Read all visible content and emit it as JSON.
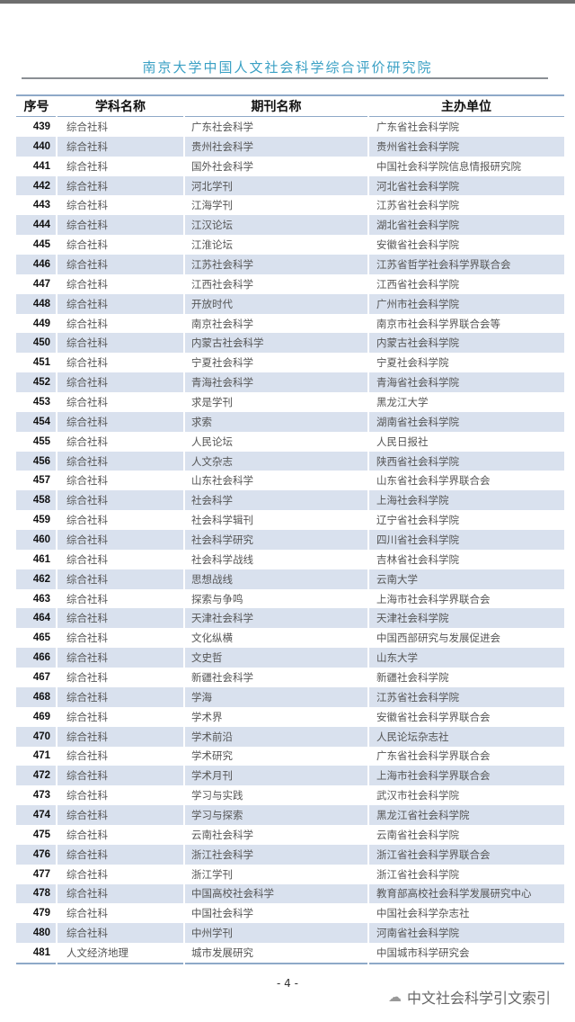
{
  "header": {
    "institution": "南京大学中国人文社会科学综合评价研究院"
  },
  "table": {
    "columns": [
      "序号",
      "学科名称",
      "期刊名称",
      "主办单位"
    ],
    "rows": [
      [
        "439",
        "综合社科",
        "广东社会科学",
        "广东省社会科学院"
      ],
      [
        "440",
        "综合社科",
        "贵州社会科学",
        "贵州省社会科学院"
      ],
      [
        "441",
        "综合社科",
        "国外社会科学",
        "中国社会科学院信息情报研究院"
      ],
      [
        "442",
        "综合社科",
        "河北学刊",
        "河北省社会科学院"
      ],
      [
        "443",
        "综合社科",
        "江海学刊",
        "江苏省社会科学院"
      ],
      [
        "444",
        "综合社科",
        "江汉论坛",
        "湖北省社会科学院"
      ],
      [
        "445",
        "综合社科",
        "江淮论坛",
        "安徽省社会科学院"
      ],
      [
        "446",
        "综合社科",
        "江苏社会科学",
        "江苏省哲学社会科学界联合会"
      ],
      [
        "447",
        "综合社科",
        "江西社会科学",
        "江西省社会科学院"
      ],
      [
        "448",
        "综合社科",
        "开放时代",
        "广州市社会科学院"
      ],
      [
        "449",
        "综合社科",
        "南京社会科学",
        "南京市社会科学界联合会等"
      ],
      [
        "450",
        "综合社科",
        "内蒙古社会科学",
        "内蒙古社会科学院"
      ],
      [
        "451",
        "综合社科",
        "宁夏社会科学",
        "宁夏社会科学院"
      ],
      [
        "452",
        "综合社科",
        "青海社会科学",
        "青海省社会科学院"
      ],
      [
        "453",
        "综合社科",
        "求是学刊",
        "黑龙江大学"
      ],
      [
        "454",
        "综合社科",
        "求索",
        "湖南省社会科学院"
      ],
      [
        "455",
        "综合社科",
        "人民论坛",
        "人民日报社"
      ],
      [
        "456",
        "综合社科",
        "人文杂志",
        "陕西省社会科学院"
      ],
      [
        "457",
        "综合社科",
        "山东社会科学",
        "山东省社会科学界联合会"
      ],
      [
        "458",
        "综合社科",
        "社会科学",
        "上海社会科学院"
      ],
      [
        "459",
        "综合社科",
        "社会科学辑刊",
        "辽宁省社会科学院"
      ],
      [
        "460",
        "综合社科",
        "社会科学研究",
        "四川省社会科学院"
      ],
      [
        "461",
        "综合社科",
        "社会科学战线",
        "吉林省社会科学院"
      ],
      [
        "462",
        "综合社科",
        "思想战线",
        "云南大学"
      ],
      [
        "463",
        "综合社科",
        "探索与争鸣",
        "上海市社会科学界联合会"
      ],
      [
        "464",
        "综合社科",
        "天津社会科学",
        "天津社会科学院"
      ],
      [
        "465",
        "综合社科",
        "文化纵横",
        "中国西部研究与发展促进会"
      ],
      [
        "466",
        "综合社科",
        "文史哲",
        "山东大学"
      ],
      [
        "467",
        "综合社科",
        "新疆社会科学",
        "新疆社会科学院"
      ],
      [
        "468",
        "综合社科",
        "学海",
        "江苏省社会科学院"
      ],
      [
        "469",
        "综合社科",
        "学术界",
        "安徽省社会科学界联合会"
      ],
      [
        "470",
        "综合社科",
        "学术前沿",
        "人民论坛杂志社"
      ],
      [
        "471",
        "综合社科",
        "学术研究",
        "广东省社会科学界联合会"
      ],
      [
        "472",
        "综合社科",
        "学术月刊",
        "上海市社会科学界联合会"
      ],
      [
        "473",
        "综合社科",
        "学习与实践",
        "武汉市社会科学院"
      ],
      [
        "474",
        "综合社科",
        "学习与探索",
        "黑龙江省社会科学院"
      ],
      [
        "475",
        "综合社科",
        "云南社会科学",
        "云南省社会科学院"
      ],
      [
        "476",
        "综合社科",
        "浙江社会科学",
        "浙江省社会科学界联合会"
      ],
      [
        "477",
        "综合社科",
        "浙江学刊",
        "浙江省社会科学院"
      ],
      [
        "478",
        "综合社科",
        "中国高校社会科学",
        "教育部高校社会科学发展研究中心"
      ],
      [
        "479",
        "综合社科",
        "中国社会科学",
        "中国社会科学杂志社"
      ],
      [
        "480",
        "综合社科",
        "中州学刊",
        "河南省社会科学院"
      ],
      [
        "481",
        "人文经济地理",
        "城市发展研究",
        "中国城市科学研究会"
      ]
    ]
  },
  "footer": {
    "page_number": "- 4 -",
    "watermark": "中文社会科学引文索引",
    "watermark_icon": "wechat-icon"
  },
  "colors": {
    "title": "#3aa0c4",
    "row_stripe": "#d9e1ee",
    "rule": "#8ea9c8"
  }
}
